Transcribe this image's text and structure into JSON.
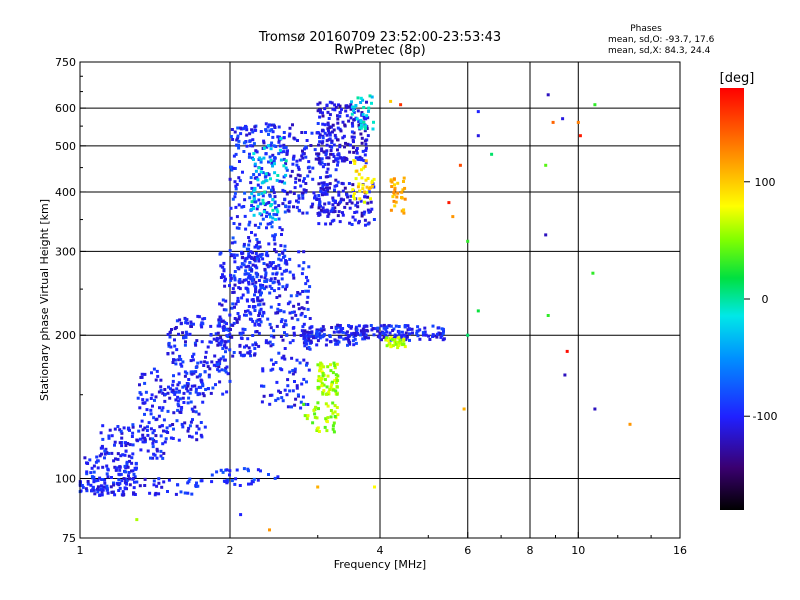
{
  "chart_data": {
    "type": "scatter",
    "title": "Tromsø 20160709 23:52:00-23:53:43",
    "subtitle": "RwPretec (8p)",
    "xlabel": "Frequency [MHz]",
    "ylabel": "Stationary phase Virtual Height [km]",
    "x_scale": "log2",
    "y_scale": "log",
    "xlim": [
      1,
      16
    ],
    "ylim": [
      75,
      750
    ],
    "x_ticks": [
      "1",
      "2",
      "4",
      "6",
      "8",
      "10",
      "16"
    ],
    "x_tick_values": [
      1,
      2,
      4,
      6,
      8,
      10,
      16
    ],
    "y_ticks": [
      "75",
      "100",
      "200",
      "300",
      "400",
      "500",
      "600",
      "750"
    ],
    "y_tick_values": [
      75,
      100,
      200,
      300,
      400,
      500,
      600,
      750
    ],
    "grid": true,
    "phase_stats": {
      "heading": "Phases",
      "line_o": "mean, sd,O:  -93.7, 17.6",
      "line_x": "mean, sd,X:  84.3, 24.4"
    },
    "colorbar": {
      "label": "[deg]",
      "range": [
        -180,
        180
      ],
      "ticks": [
        "100",
        "0",
        "-100"
      ],
      "tick_values": [
        100,
        0,
        -100
      ]
    },
    "clusters": [
      {
        "x": [
          1.0,
          1.3
        ],
        "y": [
          92,
          112
        ],
        "phase": -100,
        "n": 110
      },
      {
        "x": [
          1.1,
          1.5
        ],
        "y": [
          110,
          130
        ],
        "phase": -100,
        "n": 90
      },
      {
        "x": [
          1.3,
          1.8
        ],
        "y": [
          120,
          170
        ],
        "phase": -100,
        "n": 140
      },
      {
        "x": [
          1.5,
          2.0
        ],
        "y": [
          150,
          220
        ],
        "phase": -100,
        "n": 170
      },
      {
        "x": [
          1.9,
          2.3
        ],
        "y": [
          180,
          300
        ],
        "phase": -100,
        "n": 190
      },
      {
        "x": [
          2.0,
          2.6
        ],
        "y": [
          250,
          560
        ],
        "phase": -95,
        "n": 320
      },
      {
        "x": [
          2.2,
          2.9
        ],
        "y": [
          200,
          300
        ],
        "phase": -100,
        "n": 140
      },
      {
        "x": [
          2.3,
          2.9
        ],
        "y": [
          140,
          200
        ],
        "phase": -100,
        "n": 80
      },
      {
        "x": [
          2.6,
          3.3
        ],
        "y": [
          360,
          560
        ],
        "phase": -105,
        "n": 160
      },
      {
        "x": [
          3.0,
          3.8
        ],
        "y": [
          460,
          620
        ],
        "phase": -110,
        "n": 170
      },
      {
        "x": [
          3.0,
          3.9
        ],
        "y": [
          340,
          420
        ],
        "phase": -110,
        "n": 110
      },
      {
        "x": [
          2.8,
          3.6
        ],
        "y": [
          190,
          210
        ],
        "phase": -100,
        "n": 120
      },
      {
        "x": [
          3.6,
          5.4
        ],
        "y": [
          195,
          210
        ],
        "phase": -100,
        "n": 130
      },
      {
        "x": [
          4.1,
          4.5
        ],
        "y": [
          188,
          198
        ],
        "phase": 60,
        "n": 35
      },
      {
        "x": [
          3.0,
          3.3
        ],
        "y": [
          150,
          175
        ],
        "phase": 60,
        "n": 70
      },
      {
        "x": [
          2.8,
          3.3
        ],
        "y": [
          125,
          145
        ],
        "phase": 55,
        "n": 40
      },
      {
        "x": [
          3.5,
          3.9
        ],
        "y": [
          380,
          470
        ],
        "phase": 90,
        "n": 35
      },
      {
        "x": [
          4.2,
          4.5
        ],
        "y": [
          360,
          430
        ],
        "phase": 110,
        "n": 30
      },
      {
        "x": [
          2.2,
          2.6
        ],
        "y": [
          350,
          520
        ],
        "phase": -20,
        "n": 60
      },
      {
        "x": [
          1.0,
          1.7
        ],
        "y": [
          92,
          100
        ],
        "phase": -100,
        "n": 70
      },
      {
        "x": [
          1.7,
          2.5
        ],
        "y": [
          96,
          106
        ],
        "phase": -90,
        "n": 40
      },
      {
        "x": [
          3.5,
          3.9
        ],
        "y": [
          540,
          640
        ],
        "phase": -20,
        "n": 30
      }
    ],
    "sparse_points": [
      {
        "x": 3.0,
        "y": 96,
        "phase": 110
      },
      {
        "x": 3.9,
        "y": 96,
        "phase": 80
      },
      {
        "x": 2.4,
        "y": 78,
        "phase": 120
      },
      {
        "x": 2.1,
        "y": 84,
        "phase": -100
      },
      {
        "x": 1.3,
        "y": 82,
        "phase": 60
      },
      {
        "x": 4.2,
        "y": 620,
        "phase": 100
      },
      {
        "x": 4.4,
        "y": 610,
        "phase": 160
      },
      {
        "x": 5.8,
        "y": 455,
        "phase": 150
      },
      {
        "x": 5.5,
        "y": 380,
        "phase": 170
      },
      {
        "x": 5.6,
        "y": 355,
        "phase": 120
      },
      {
        "x": 6.0,
        "y": 315,
        "phase": 30
      },
      {
        "x": 6.3,
        "y": 225,
        "phase": 20
      },
      {
        "x": 6.0,
        "y": 200,
        "phase": 10
      },
      {
        "x": 5.9,
        "y": 140,
        "phase": 110
      },
      {
        "x": 6.3,
        "y": 590,
        "phase": -100
      },
      {
        "x": 6.3,
        "y": 525,
        "phase": -110
      },
      {
        "x": 6.7,
        "y": 480,
        "phase": 10
      },
      {
        "x": 8.7,
        "y": 640,
        "phase": -120
      },
      {
        "x": 8.9,
        "y": 560,
        "phase": 140
      },
      {
        "x": 9.3,
        "y": 570,
        "phase": -110
      },
      {
        "x": 10.0,
        "y": 560,
        "phase": 130
      },
      {
        "x": 10.1,
        "y": 525,
        "phase": 170
      },
      {
        "x": 8.6,
        "y": 455,
        "phase": 40
      },
      {
        "x": 8.6,
        "y": 325,
        "phase": -120
      },
      {
        "x": 8.7,
        "y": 220,
        "phase": 30
      },
      {
        "x": 9.5,
        "y": 185,
        "phase": 175
      },
      {
        "x": 9.4,
        "y": 165,
        "phase": -120
      },
      {
        "x": 10.8,
        "y": 610,
        "phase": 30
      },
      {
        "x": 10.7,
        "y": 270,
        "phase": 30
      },
      {
        "x": 10.8,
        "y": 140,
        "phase": -120
      },
      {
        "x": 12.7,
        "y": 130,
        "phase": 120
      }
    ]
  }
}
